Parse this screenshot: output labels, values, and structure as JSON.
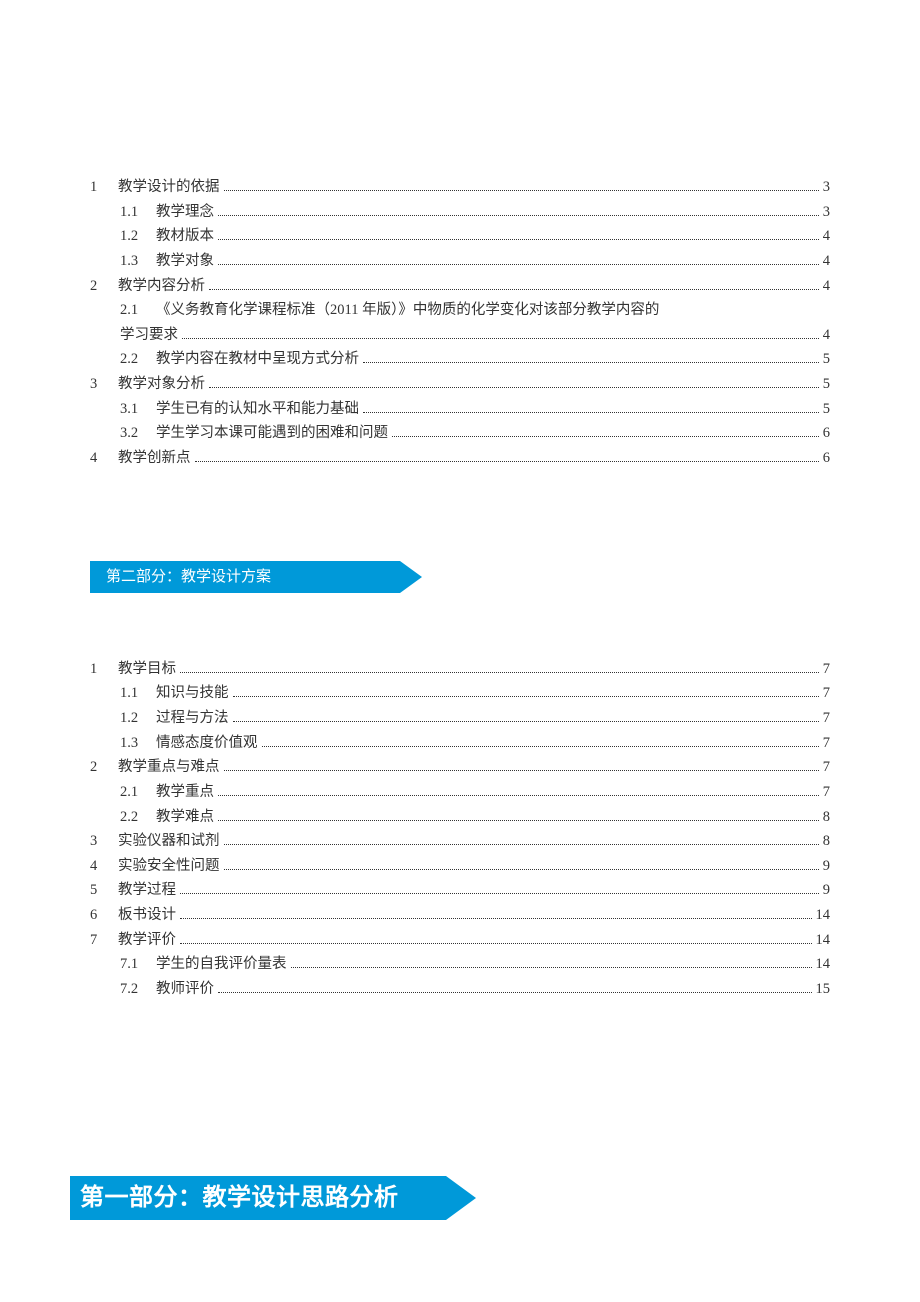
{
  "colors": {
    "banner_bg": "#0099d9",
    "text": "#333333",
    "page_bg": "#ffffff"
  },
  "fonts": {
    "toc_fontsize": 14.5,
    "banner_small_fontsize": 15,
    "banner_large_fontsize": 24
  },
  "section1": {
    "items": [
      {
        "num": "1",
        "title": "教学设计的依据",
        "page": "3",
        "level": 1
      },
      {
        "num": "1.1",
        "title": "教学理念",
        "page": "3",
        "level": 2
      },
      {
        "num": "1.2",
        "title": "教材版本",
        "page": "4",
        "level": 2
      },
      {
        "num": "1.3",
        "title": "教学对象",
        "page": "4",
        "level": 2
      },
      {
        "num": "2",
        "title": "教学内容分析",
        "page": "4",
        "level": 1
      },
      {
        "num": "2.1",
        "title_line1": "《义务教育化学课程标准（2011 年版）》中物质的化学变化对该部分教学内容的",
        "title_line2": "学习要求",
        "page": "4",
        "level": 2,
        "wrap": true
      },
      {
        "num": "2.2",
        "title": "教学内容在教材中呈现方式分析",
        "page": "5",
        "level": 2
      },
      {
        "num": "3",
        "title": "教学对象分析",
        "page": "5",
        "level": 1
      },
      {
        "num": "3.1",
        "title": "学生已有的认知水平和能力基础",
        "page": "5",
        "level": 2
      },
      {
        "num": "3.2",
        "title": "学生学习本课可能遇到的困难和问题",
        "page": "6",
        "level": 2
      },
      {
        "num": "4",
        "title": "教学创新点",
        "page": "6",
        "level": 1
      }
    ]
  },
  "banner_small": {
    "text": "第二部分：教学设计方案"
  },
  "section2": {
    "items": [
      {
        "num": "1",
        "title": "教学目标",
        "page": "7",
        "level": 1
      },
      {
        "num": "1.1",
        "title": "知识与技能",
        "page": "7",
        "level": 2
      },
      {
        "num": "1.2",
        "title": "过程与方法",
        "page": "7",
        "level": 2
      },
      {
        "num": "1.3",
        "title": "情感态度价值观",
        "page": "7",
        "level": 2
      },
      {
        "num": "2",
        "title": "教学重点与难点",
        "page": "7",
        "level": 1
      },
      {
        "num": "2.1",
        "title": "教学重点",
        "page": "7",
        "level": 2
      },
      {
        "num": "2.2",
        "title": "教学难点",
        "page": "8",
        "level": 2
      },
      {
        "num": "3",
        "title": "实验仪器和试剂",
        "page": "8",
        "level": 1
      },
      {
        "num": "4",
        "title": "实验安全性问题",
        "page": "9",
        "level": 1
      },
      {
        "num": "5",
        "title": "教学过程",
        "page": "9",
        "level": 1
      },
      {
        "num": "6",
        "title": "板书设计",
        "page": "14",
        "level": 1
      },
      {
        "num": "7",
        "title": "教学评价",
        "page": "14",
        "level": 1
      },
      {
        "num": "7.1",
        "title": "学生的自我评价量表",
        "page": "14",
        "level": 2
      },
      {
        "num": "7.2",
        "title": "教师评价",
        "page": "15",
        "level": 2
      }
    ]
  },
  "banner_large": {
    "text": "第一部分：教学设计思路分析"
  }
}
